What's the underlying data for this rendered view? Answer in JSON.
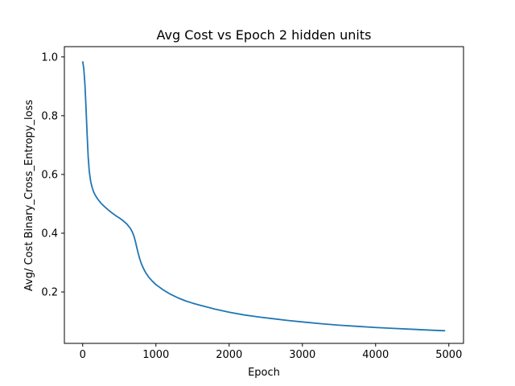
{
  "chart_data": {
    "type": "line",
    "title": "Avg Cost vs Epoch 2 hidden units",
    "xlabel": "Epoch",
    "ylabel": "Avg/ Cost Binary_Cross_Entropy_loss",
    "xlim": [
      -250,
      5200
    ],
    "ylim": [
      0.025,
      1.035
    ],
    "xticks": [
      0,
      1000,
      2000,
      3000,
      4000,
      5000
    ],
    "yticks": [
      0.2,
      0.4,
      0.6,
      0.8,
      1.0
    ],
    "xtick_labels": [
      "0",
      "1000",
      "2000",
      "3000",
      "4000",
      "5000"
    ],
    "ytick_labels": [
      "0.2",
      "0.4",
      "0.6",
      "0.8",
      "1.0"
    ],
    "grid": false,
    "series": [
      {
        "color": "#1f77b4",
        "x": [
          0,
          15,
          30,
          45,
          60,
          75,
          90,
          110,
          130,
          150,
          175,
          200,
          250,
          300,
          350,
          400,
          450,
          500,
          550,
          600,
          650,
          680,
          700,
          720,
          740,
          760,
          780,
          800,
          830,
          860,
          900,
          950,
          1000,
          1100,
          1200,
          1300,
          1400,
          1500,
          1600,
          1800,
          2000,
          2200,
          2400,
          2600,
          2800,
          3000,
          3250,
          3500,
          3750,
          4000,
          4250,
          4500,
          4750,
          4950
        ],
        "y": [
          0.985,
          0.96,
          0.91,
          0.83,
          0.74,
          0.66,
          0.61,
          0.575,
          0.555,
          0.54,
          0.528,
          0.518,
          0.502,
          0.49,
          0.479,
          0.469,
          0.46,
          0.452,
          0.443,
          0.432,
          0.417,
          0.403,
          0.39,
          0.372,
          0.35,
          0.33,
          0.312,
          0.297,
          0.28,
          0.266,
          0.251,
          0.237,
          0.225,
          0.207,
          0.192,
          0.18,
          0.17,
          0.162,
          0.155,
          0.142,
          0.131,
          0.122,
          0.115,
          0.109,
          0.103,
          0.098,
          0.092,
          0.087,
          0.083,
          0.079,
          0.076,
          0.073,
          0.07,
          0.068
        ]
      }
    ]
  }
}
